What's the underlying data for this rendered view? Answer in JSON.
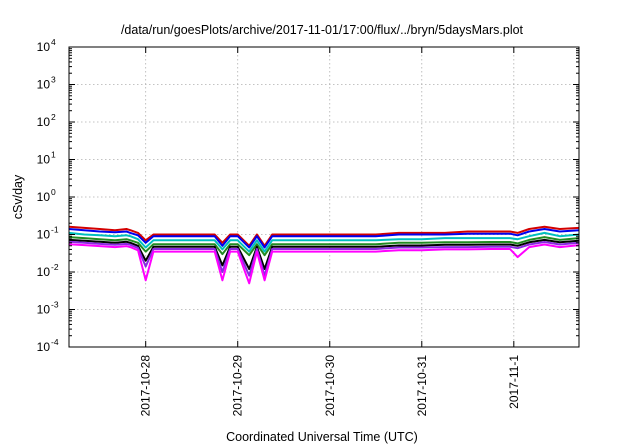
{
  "chart_data": {
    "type": "line",
    "title": "/data/run/goesPlots/archive/2017-11-01/17:00/flux/../bryn/5daysMars.plot",
    "xlabel": "Coordinated Universal Time (UTC)",
    "ylabel": "cSv/day",
    "y_scale": "log",
    "ylim": [
      0.0001,
      10000
    ],
    "xlim": [
      "2017-10-27 04:00",
      "2017-11-01 17:00"
    ],
    "y_ticks": [
      {
        "base": "10",
        "exp": "-4",
        "value": 0.0001
      },
      {
        "base": "10",
        "exp": "-3",
        "value": 0.001
      },
      {
        "base": "10",
        "exp": "-2",
        "value": 0.01
      },
      {
        "base": "10",
        "exp": "-1",
        "value": 0.1
      },
      {
        "base": "10",
        "exp": "0",
        "value": 1
      },
      {
        "base": "10",
        "exp": "1",
        "value": 10
      },
      {
        "base": "10",
        "exp": "2",
        "value": 100
      },
      {
        "base": "10",
        "exp": "3",
        "value": 1000
      },
      {
        "base": "10",
        "exp": "4",
        "value": 10000
      }
    ],
    "x_ticks": [
      {
        "label": "2017-10-28",
        "date": "2017-10-28 00:00"
      },
      {
        "label": "2017-10-29",
        "date": "2017-10-29 00:00"
      },
      {
        "label": "2017-10-30",
        "date": "2017-10-30 00:00"
      },
      {
        "label": "2017-10-31",
        "date": "2017-10-31 00:00"
      },
      {
        "label": "2017-11-1",
        "date": "2017-11-01 00:00"
      }
    ],
    "grid": true,
    "x": [
      "2017-10-27 04:00",
      "2017-10-27 08:00",
      "2017-10-27 12:00",
      "2017-10-27 16:00",
      "2017-10-27 19:00",
      "2017-10-27 20:00",
      "2017-10-27 22:00",
      "2017-10-28 00:00",
      "2017-10-28 02:00",
      "2017-10-28 06:00",
      "2017-10-28 12:00",
      "2017-10-28 18:00",
      "2017-10-28 20:00",
      "2017-10-28 22:00",
      "2017-10-29 00:00",
      "2017-10-29 03:00",
      "2017-10-29 05:00",
      "2017-10-29 07:00",
      "2017-10-29 09:00",
      "2017-10-29 10:00",
      "2017-10-29 12:00",
      "2017-10-29 18:00",
      "2017-10-30 00:00",
      "2017-10-30 06:00",
      "2017-10-30 12:00",
      "2017-10-30 18:00",
      "2017-10-31 00:00",
      "2017-10-31 06:00",
      "2017-10-31 12:00",
      "2017-10-31 18:00",
      "2017-10-31 23:00",
      "2017-11-01 01:00",
      "2017-11-01 04:00",
      "2017-11-01 08:00",
      "2017-11-01 12:00",
      "2017-11-01 17:00"
    ],
    "series": [
      {
        "color": "#d40000",
        "values": [
          0.16,
          0.15,
          0.14,
          0.13,
          0.14,
          0.13,
          0.11,
          0.07,
          0.1,
          0.1,
          0.1,
          0.1,
          0.06,
          0.1,
          0.1,
          0.05,
          0.1,
          0.05,
          0.1,
          0.1,
          0.1,
          0.1,
          0.1,
          0.1,
          0.1,
          0.11,
          0.11,
          0.11,
          0.12,
          0.12,
          0.12,
          0.11,
          0.14,
          0.16,
          0.14,
          0.15
        ]
      },
      {
        "color": "#0000ee",
        "values": [
          0.14,
          0.13,
          0.12,
          0.115,
          0.12,
          0.11,
          0.095,
          0.06,
          0.09,
          0.09,
          0.09,
          0.09,
          0.05,
          0.09,
          0.09,
          0.045,
          0.09,
          0.045,
          0.09,
          0.09,
          0.09,
          0.09,
          0.09,
          0.09,
          0.09,
          0.1,
          0.1,
          0.1,
          0.105,
          0.105,
          0.105,
          0.095,
          0.12,
          0.14,
          0.12,
          0.13
        ]
      },
      {
        "color": "#00bfbf",
        "values": [
          0.11,
          0.1,
          0.095,
          0.09,
          0.095,
          0.09,
          0.075,
          0.045,
          0.07,
          0.07,
          0.07,
          0.07,
          0.04,
          0.07,
          0.07,
          0.035,
          0.07,
          0.035,
          0.07,
          0.07,
          0.07,
          0.07,
          0.07,
          0.07,
          0.07,
          0.075,
          0.075,
          0.08,
          0.08,
          0.08,
          0.08,
          0.075,
          0.09,
          0.11,
          0.09,
          0.1
        ]
      },
      {
        "color": "#228b22",
        "values": [
          0.085,
          0.08,
          0.075,
          0.07,
          0.075,
          0.07,
          0.06,
          0.035,
          0.055,
          0.055,
          0.055,
          0.055,
          0.03,
          0.055,
          0.055,
          0.028,
          0.055,
          0.028,
          0.055,
          0.055,
          0.055,
          0.055,
          0.055,
          0.055,
          0.055,
          0.06,
          0.06,
          0.062,
          0.062,
          0.063,
          0.063,
          0.058,
          0.072,
          0.085,
          0.072,
          0.08
        ]
      },
      {
        "color": "#000000",
        "values": [
          0.072,
          0.068,
          0.064,
          0.06,
          0.064,
          0.06,
          0.05,
          0.02,
          0.047,
          0.047,
          0.047,
          0.047,
          0.015,
          0.047,
          0.047,
          0.012,
          0.047,
          0.012,
          0.047,
          0.047,
          0.047,
          0.047,
          0.047,
          0.047,
          0.047,
          0.051,
          0.051,
          0.053,
          0.053,
          0.054,
          0.054,
          0.05,
          0.062,
          0.072,
          0.062,
          0.068
        ]
      },
      {
        "color": "#8a2be2",
        "values": [
          0.064,
          0.06,
          0.056,
          0.053,
          0.056,
          0.053,
          0.044,
          0.014,
          0.041,
          0.041,
          0.041,
          0.041,
          0.01,
          0.041,
          0.041,
          0.008,
          0.041,
          0.008,
          0.041,
          0.041,
          0.041,
          0.041,
          0.041,
          0.041,
          0.041,
          0.045,
          0.045,
          0.046,
          0.046,
          0.047,
          0.047,
          0.043,
          0.054,
          0.063,
          0.054,
          0.06
        ]
      },
      {
        "color": "#ff00ff",
        "values": [
          0.055,
          0.052,
          0.049,
          0.046,
          0.049,
          0.046,
          0.038,
          0.006,
          0.035,
          0.035,
          0.035,
          0.035,
          0.006,
          0.035,
          0.035,
          0.005,
          0.035,
          0.006,
          0.035,
          0.035,
          0.035,
          0.035,
          0.035,
          0.035,
          0.035,
          0.038,
          0.038,
          0.04,
          0.04,
          0.041,
          0.041,
          0.025,
          0.046,
          0.054,
          0.046,
          0.052
        ]
      }
    ]
  }
}
